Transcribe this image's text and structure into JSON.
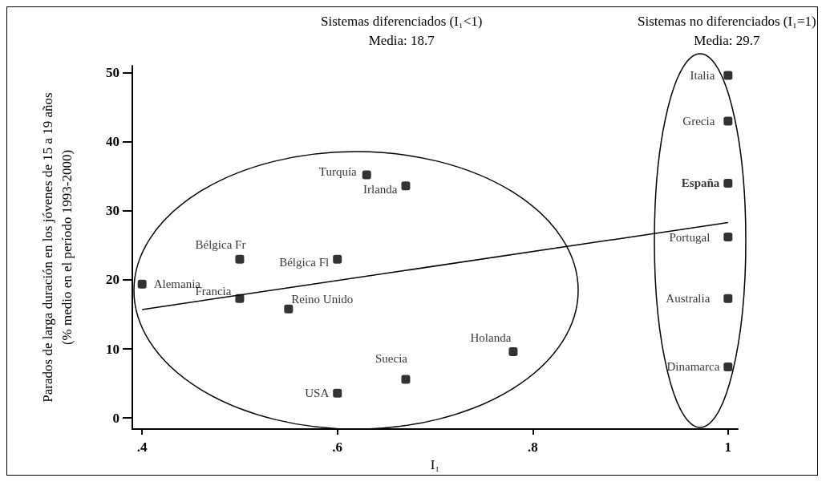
{
  "chart_data": {
    "type": "scatter",
    "xlabel": "I₁",
    "ylabel": "Parados de larga duración en los jóvenes de 15 a 19 años\n(% medio en el período 1993-2000)",
    "annotations": [
      "Sistemas diferenciados (I₁<1)\nMedia: 18.7",
      "Sistemas no diferenciados (I₁=1)\nMedia: 29.7"
    ],
    "xlim": [
      0.39,
      1.01
    ],
    "xticks": [
      {
        "value": 0.4,
        "label": ".4"
      },
      {
        "value": 0.6,
        "label": ".6"
      },
      {
        "value": 0.8,
        "label": ".8"
      },
      1
    ],
    "ylim": [
      -1.6,
      51
    ],
    "yticks": [
      0,
      10,
      20,
      30,
      40,
      50
    ],
    "grid": false,
    "legend": false,
    "marker": "square",
    "series": [
      {
        "name": "Alemania",
        "color": "#000000",
        "x": [
          0.4
        ],
        "values": [
          19.4
        ]
      },
      {
        "name": "Bélgica Fr",
        "color": "#000000",
        "x": [
          0.5
        ],
        "values": [
          23.0
        ]
      },
      {
        "name": "Francia",
        "color": "#000000",
        "x": [
          0.5
        ],
        "values": [
          17.3
        ]
      },
      {
        "name": "Reino Unido",
        "color": "#000000",
        "x": [
          0.55
        ],
        "values": [
          15.8
        ]
      },
      {
        "name": "Bélgica Fl",
        "color": "#000000",
        "x": [
          0.6
        ],
        "values": [
          23.0
        ]
      },
      {
        "name": "Turquía",
        "color": "#000000",
        "x": [
          0.63
        ],
        "values": [
          35.2
        ]
      },
      {
        "name": "Irlanda",
        "color": "#000000",
        "x": [
          0.67
        ],
        "values": [
          33.6
        ]
      },
      {
        "name": "USA",
        "color": "#000000",
        "x": [
          0.6
        ],
        "values": [
          3.6
        ]
      },
      {
        "name": "Suecia",
        "color": "#000000",
        "x": [
          0.67
        ],
        "values": [
          5.6
        ]
      },
      {
        "name": "Holanda",
        "color": "#000000",
        "x": [
          0.78
        ],
        "values": [
          9.6
        ]
      },
      {
        "name": "Italia",
        "color": "#000000",
        "x": [
          1
        ],
        "values": [
          49.6
        ]
      },
      {
        "name": "Grecia",
        "color": "#000000",
        "x": [
          1
        ],
        "values": [
          43.0
        ]
      },
      {
        "name": "España",
        "color": "#000000",
        "x": [
          1
        ],
        "values": [
          34.0
        ]
      },
      {
        "name": "Portugal",
        "color": "#000000",
        "x": [
          1
        ],
        "values": [
          26.2
        ]
      },
      {
        "name": "Australia",
        "color": "#000000",
        "x": [
          1
        ],
        "values": [
          17.3
        ]
      },
      {
        "name": "Dinamarca",
        "color": "#000000",
        "x": [
          1
        ],
        "values": [
          7.4
        ]
      },
      {
        "type": "line",
        "color": "#000000",
        "x": [
          0.4,
          1
        ],
        "values": [
          15.7,
          28.3
        ],
        "marker": "none",
        "line_style": "solid"
      }
    ]
  }
}
